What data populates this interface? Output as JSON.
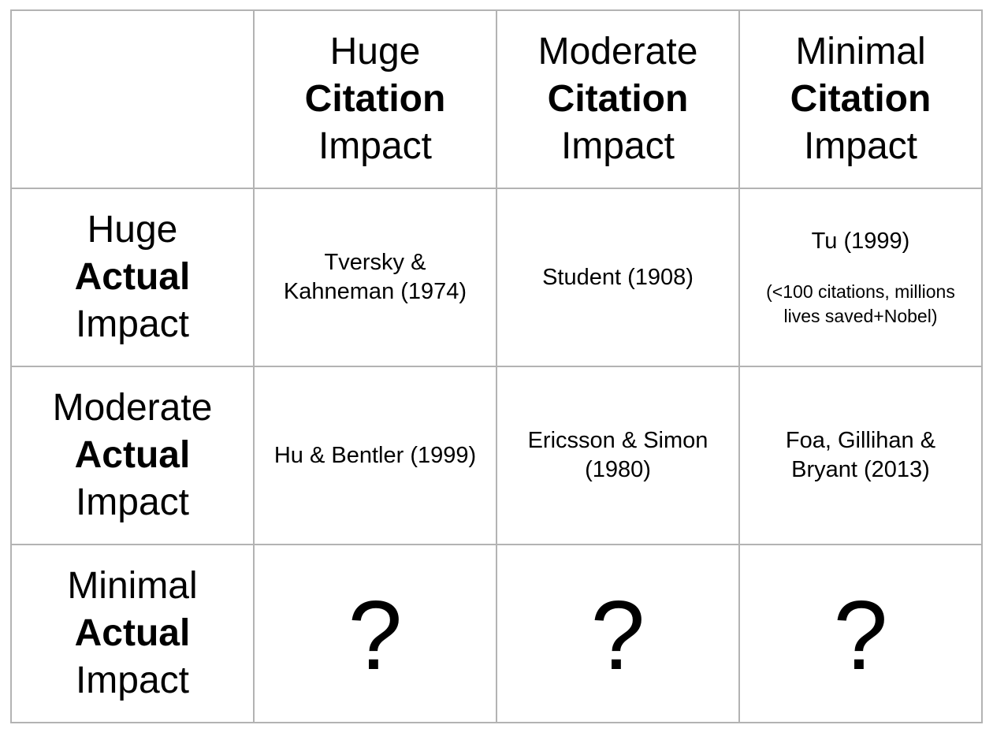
{
  "columns": [
    {
      "line1": "Huge",
      "line2": "Citation",
      "line3": "Impact"
    },
    {
      "line1": "Moderate",
      "line2": "Citation",
      "line3": "Impact"
    },
    {
      "line1": "Minimal",
      "line2": "Citation",
      "line3": "Impact"
    }
  ],
  "rows": [
    {
      "line1": "Huge",
      "line2": "Actual",
      "line3": "Impact",
      "cells": [
        {
          "text": "Tversky & Kahneman (1974)"
        },
        {
          "text": "Student (1908)"
        },
        {
          "text": "Tu (1999)",
          "note": "(<100 citations, millions lives saved+Nobel)"
        }
      ]
    },
    {
      "line1": "Moderate",
      "line2": "Actual",
      "line3": "Impact",
      "cells": [
        {
          "text": "Hu & Bentler (1999)"
        },
        {
          "text": "Ericsson & Simon (1980)"
        },
        {
          "text": "Foa, Gillihan & Bryant (2013)"
        }
      ]
    },
    {
      "line1": "Minimal",
      "line2": "Actual",
      "line3": "Impact",
      "cells": [
        {
          "text": "?"
        },
        {
          "text": "?"
        },
        {
          "text": "?"
        }
      ]
    }
  ]
}
